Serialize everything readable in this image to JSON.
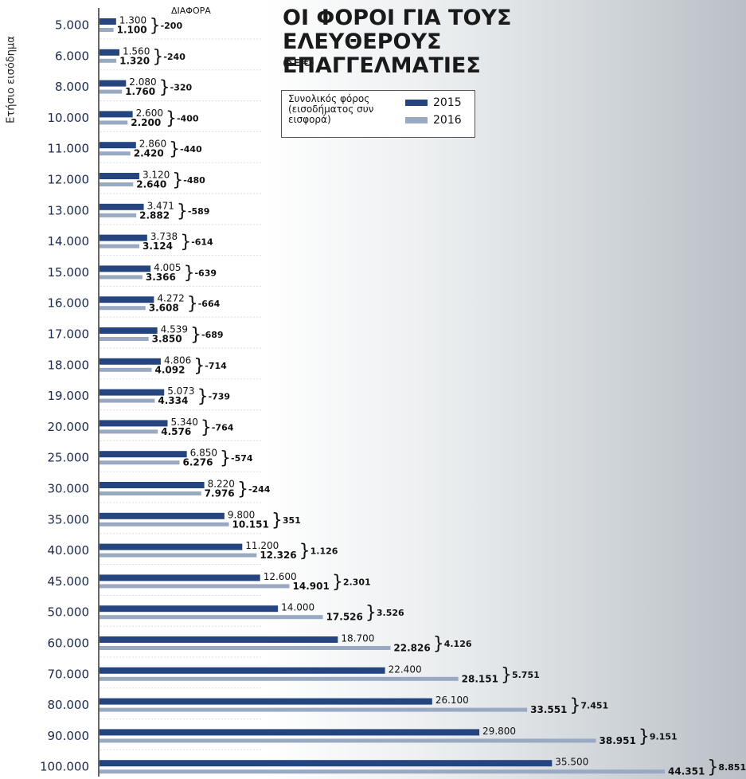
{
  "chart_data": {
    "type": "bar",
    "title": "ΟΙ ΦΟΡΟΙ ΓΙΑ ΤΟΥΣ ΕΛΕΥΘΕΡΟΥΣ ΕΠΑΓΓΕΛΜΑΤΙΕΣ",
    "subtitle": "(ΣΕ €)",
    "y_label": "Ετήσιο εισόδημα",
    "legend_title": "Συνολικός φόρος (εισοδήματος συν εισφορά)",
    "categories": [
      "5.000",
      "6.000",
      "8.000",
      "10.000",
      "11.000",
      "12.000",
      "13.000",
      "14.000",
      "15.000",
      "16.000",
      "17.000",
      "18.000",
      "19.000",
      "20.000",
      "25.000",
      "30.000",
      "35.000",
      "40.000",
      "45.000",
      "50.000",
      "60.000",
      "70.000",
      "80.000",
      "90.000",
      "100.000"
    ],
    "series": [
      {
        "name": "2015",
        "color": "#24457f",
        "values": [
          1300,
          1560,
          2080,
          2600,
          2860,
          3120,
          3471,
          3738,
          4005,
          4272,
          4539,
          4806,
          5073,
          5340,
          6850,
          8220,
          9800,
          11200,
          12600,
          14000,
          18700,
          22400,
          26100,
          29800,
          35500
        ],
        "value_labels": [
          "1.300",
          "1.560",
          "2.080",
          "2.600",
          "2.860",
          "3.120",
          "3.471",
          "3.738",
          "4.005",
          "4.272",
          "4.539",
          "4.806",
          "5.073",
          "5.340",
          "6.850",
          "8.220",
          "9.800",
          "11.200",
          "12.600",
          "14.000",
          "18.700",
          "22.400",
          "26.100",
          "29.800",
          "35.500"
        ]
      },
      {
        "name": "2016",
        "color": "#9aa9c2",
        "values": [
          1100,
          1320,
          1760,
          2200,
          2420,
          2640,
          2882,
          3124,
          3366,
          3608,
          3850,
          4092,
          4334,
          4576,
          6276,
          7976,
          10151,
          12326,
          14901,
          17526,
          22826,
          28151,
          33551,
          38951,
          44351
        ],
        "value_labels": [
          "1.100",
          "1.320",
          "1.760",
          "2.200",
          "2.420",
          "2.640",
          "2.882",
          "3.124",
          "3.366",
          "3.608",
          "3.850",
          "4.092",
          "4.334",
          "4.576",
          "6.276",
          "7.976",
          "10.151",
          "12.326",
          "14.901",
          "17.526",
          "22.826",
          "28.151",
          "33.551",
          "38.951",
          "44.351"
        ]
      }
    ],
    "difference": {
      "label": "ΔΙΑΦΟΡΑ",
      "values": [
        -200,
        -240,
        -320,
        -400,
        -440,
        -480,
        -589,
        -614,
        -639,
        -664,
        -689,
        -714,
        -739,
        -764,
        -574,
        -244,
        351,
        1126,
        2301,
        3526,
        4126,
        5751,
        7451,
        9151,
        8851
      ],
      "value_labels": [
        "-200",
        "-240",
        "-320",
        "-400",
        "-440",
        "-480",
        "-589",
        "-614",
        "-639",
        "-664",
        "-689",
        "-714",
        "-739",
        "-764",
        "-574",
        "-244",
        "351",
        "1.126",
        "2.301",
        "3.526",
        "4.126",
        "5.751",
        "7.451",
        "9.151",
        "8.851"
      ]
    }
  }
}
